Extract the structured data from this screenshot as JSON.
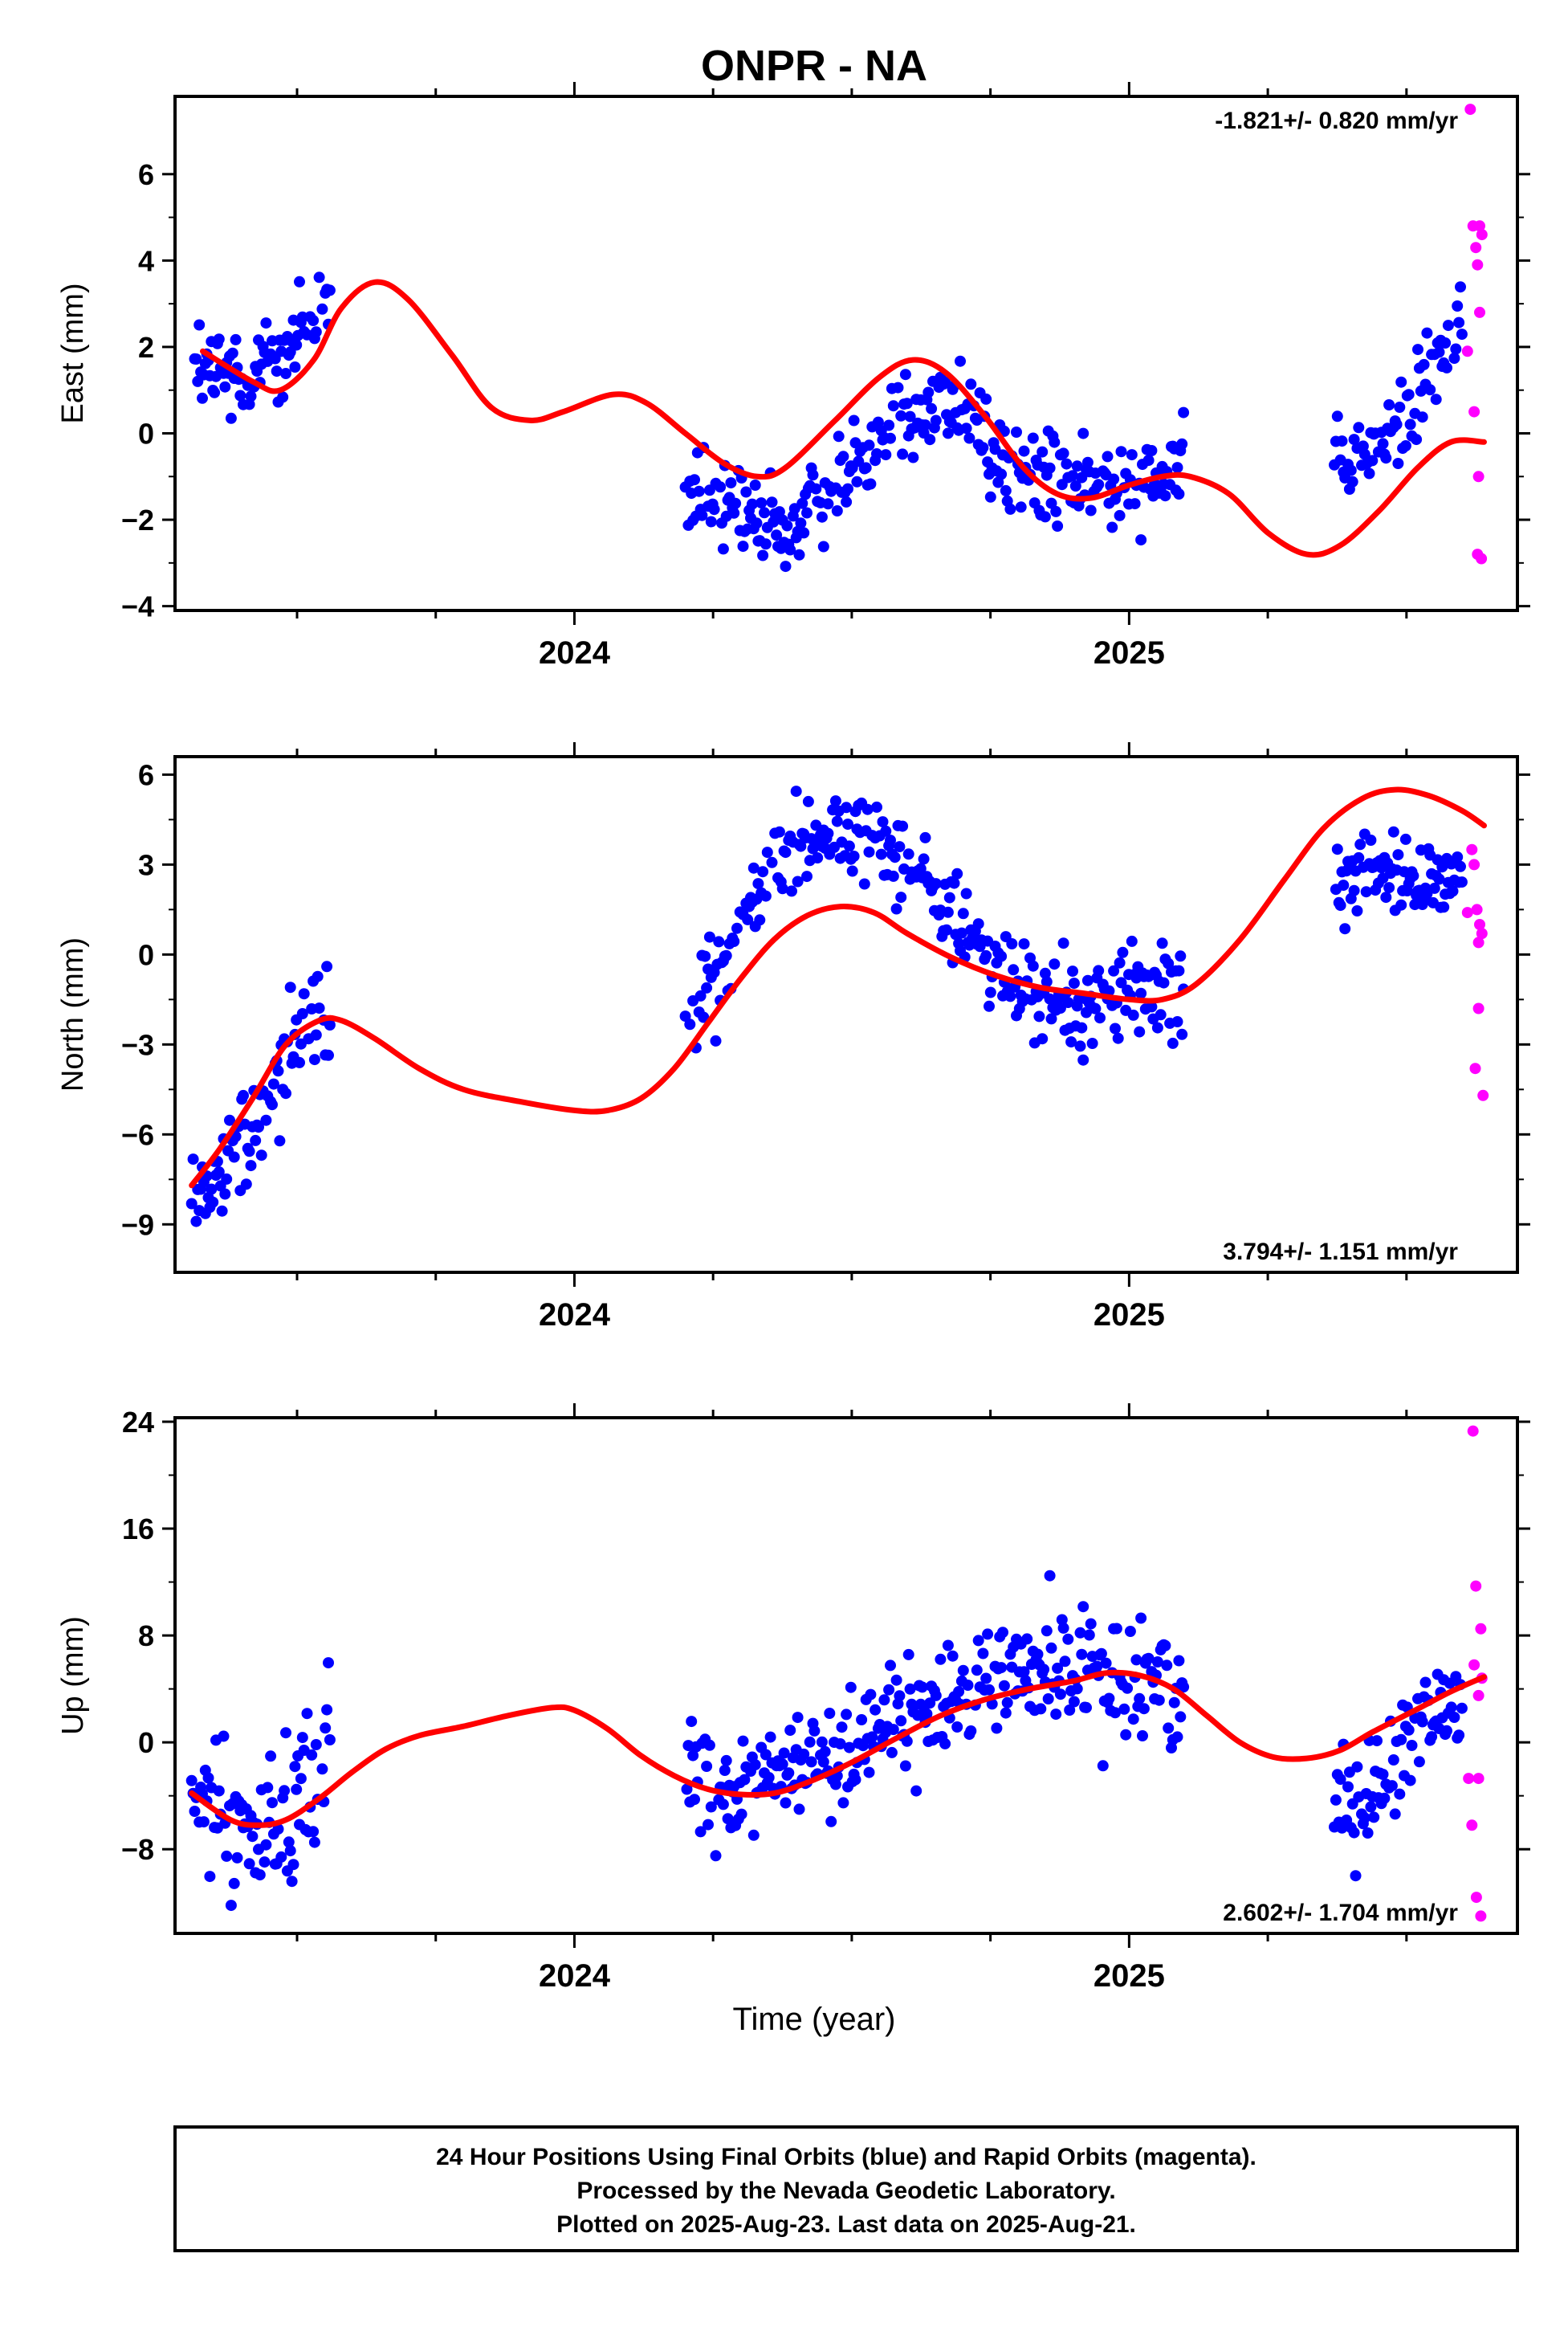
{
  "colors": {
    "final": "#0000ff",
    "rapid": "#ff00ff",
    "model": "#ff0000",
    "frame": "#000000"
  },
  "chart_data": [
    {
      "type": "scatter",
      "title": "ONPR - NA",
      "ylabel": "East (mm)",
      "xlabel": "",
      "xlim": [
        2023.28,
        2025.7
      ],
      "ylim": [
        -4.1,
        7.8
      ],
      "yticks": [
        -4,
        -2,
        0,
        2,
        4,
        6
      ],
      "ytick_labels": [
        "−4",
        "−2",
        "0",
        "2",
        "4",
        "6"
      ],
      "xticks": [
        2024,
        2025
      ],
      "xtick_labels": [
        "2024",
        "2025"
      ],
      "rate_label": "-1.821+/- 0.820 mm/yr",
      "rate_position": "top-right",
      "final_segments": [
        {
          "x_range": [
            2023.31,
            2023.56
          ],
          "knots": [
            [
              2023.31,
              1.6
            ],
            [
              2023.38,
              1.3
            ],
            [
              2023.45,
              1.7
            ],
            [
              2023.52,
              2.5
            ],
            [
              2023.56,
              3.0
            ]
          ],
          "spread": 1.0
        },
        {
          "x_range": [
            2024.2,
            2025.1
          ],
          "knots": [
            [
              2024.2,
              -1.4
            ],
            [
              2024.3,
              -1.9
            ],
            [
              2024.38,
              -2.4
            ],
            [
              2024.47,
              -1.2
            ],
            [
              2024.58,
              0.6
            ],
            [
              2024.7,
              0.6
            ],
            [
              2024.8,
              -1.0
            ],
            [
              2024.95,
              -1.3
            ],
            [
              2025.1,
              -0.5
            ]
          ],
          "spread": 1.0
        },
        {
          "x_range": [
            2025.37,
            2025.6
          ],
          "knots": [
            [
              2025.37,
              -1.0
            ],
            [
              2025.45,
              -0.4
            ],
            [
              2025.52,
              0.8
            ],
            [
              2025.6,
              2.6
            ]
          ],
          "spread": 0.9
        }
      ],
      "rapid_points": [
        [
          2025.615,
          7.5
        ],
        [
          2025.62,
          4.8
        ],
        [
          2025.625,
          4.3
        ],
        [
          2025.628,
          3.9
        ],
        [
          2025.632,
          4.8
        ],
        [
          2025.636,
          4.6
        ],
        [
          2025.632,
          2.8
        ],
        [
          2025.61,
          1.9
        ],
        [
          2025.622,
          0.5
        ],
        [
          2025.63,
          -1.0
        ],
        [
          2025.628,
          -2.8
        ],
        [
          2025.635,
          -2.9
        ]
      ],
      "model_curve": [
        [
          2023.33,
          1.9
        ],
        [
          2023.42,
          1.2
        ],
        [
          2023.47,
          1.0
        ],
        [
          2023.53,
          1.7
        ],
        [
          2023.58,
          2.9
        ],
        [
          2023.64,
          3.5
        ],
        [
          2023.7,
          3.1
        ],
        [
          2023.78,
          1.8
        ],
        [
          2023.85,
          0.6
        ],
        [
          2023.92,
          0.3
        ],
        [
          2023.98,
          0.5
        ],
        [
          2024.07,
          0.9
        ],
        [
          2024.13,
          0.7
        ],
        [
          2024.2,
          0.0
        ],
        [
          2024.27,
          -0.7
        ],
        [
          2024.33,
          -1.0
        ],
        [
          2024.38,
          -0.8
        ],
        [
          2024.47,
          0.3
        ],
        [
          2024.55,
          1.3
        ],
        [
          2024.61,
          1.7
        ],
        [
          2024.67,
          1.4
        ],
        [
          2024.74,
          0.4
        ],
        [
          2024.81,
          -0.8
        ],
        [
          2024.87,
          -1.4
        ],
        [
          2024.93,
          -1.5
        ],
        [
          2025.0,
          -1.2
        ],
        [
          2025.06,
          -1.0
        ],
        [
          2025.11,
          -1.0
        ],
        [
          2025.18,
          -1.4
        ],
        [
          2025.25,
          -2.3
        ],
        [
          2025.32,
          -2.8
        ],
        [
          2025.38,
          -2.6
        ],
        [
          2025.45,
          -1.8
        ],
        [
          2025.52,
          -0.8
        ],
        [
          2025.58,
          -0.2
        ],
        [
          2025.64,
          -0.2
        ]
      ]
    },
    {
      "type": "scatter",
      "title": "",
      "ylabel": "North (mm)",
      "xlabel": "",
      "xlim": [
        2023.28,
        2025.7
      ],
      "ylim": [
        -10.6,
        6.6
      ],
      "yticks": [
        -9,
        -6,
        -3,
        0,
        3,
        6
      ],
      "ytick_labels": [
        "−9",
        "−6",
        "−3",
        "0",
        "3",
        "6"
      ],
      "xticks": [
        2024,
        2025
      ],
      "xtick_labels": [
        "2024",
        "2025"
      ],
      "rate_label": "3.794+/- 1.151 mm/yr",
      "rate_position": "bottom-right",
      "final_segments": [
        {
          "x_range": [
            2023.31,
            2023.56
          ],
          "knots": [
            [
              2023.31,
              -7.8
            ],
            [
              2023.36,
              -7.5
            ],
            [
              2023.42,
              -6.0
            ],
            [
              2023.47,
              -3.5
            ],
            [
              2023.52,
              -2.0
            ],
            [
              2023.56,
              -2.3
            ]
          ],
          "spread": 1.6
        },
        {
          "x_range": [
            2024.2,
            2025.1
          ],
          "knots": [
            [
              2024.2,
              -1.5
            ],
            [
              2024.27,
              -0.5
            ],
            [
              2024.33,
              2.0
            ],
            [
              2024.4,
              3.8
            ],
            [
              2024.48,
              4.2
            ],
            [
              2024.55,
              3.8
            ],
            [
              2024.63,
              2.5
            ],
            [
              2024.7,
              1.0
            ],
            [
              2024.77,
              -0.8
            ],
            [
              2024.85,
              -1.5
            ],
            [
              2024.93,
              -1.7
            ],
            [
              2025.0,
              -1.1
            ],
            [
              2025.1,
              -1.4
            ]
          ],
          "spread": 1.3
        },
        {
          "x_range": [
            2025.37,
            2025.6
          ],
          "knots": [
            [
              2025.37,
              2.5
            ],
            [
              2025.45,
              2.8
            ],
            [
              2025.53,
              2.4
            ],
            [
              2025.6,
              2.6
            ]
          ],
          "spread": 1.1
        }
      ],
      "rapid_points": [
        [
          2025.618,
          3.5
        ],
        [
          2025.622,
          3.0
        ],
        [
          2025.61,
          1.4
        ],
        [
          2025.627,
          1.5
        ],
        [
          2025.632,
          1.0
        ],
        [
          2025.636,
          0.7
        ],
        [
          2025.63,
          0.4
        ],
        [
          2025.63,
          -1.8
        ],
        [
          2025.624,
          -3.8
        ],
        [
          2025.638,
          -4.7
        ]
      ],
      "model_curve": [
        [
          2023.31,
          -7.7
        ],
        [
          2023.36,
          -6.5
        ],
        [
          2023.42,
          -4.8
        ],
        [
          2023.48,
          -3.0
        ],
        [
          2023.54,
          -2.2
        ],
        [
          2023.58,
          -2.2
        ],
        [
          2023.64,
          -2.8
        ],
        [
          2023.72,
          -3.8
        ],
        [
          2023.8,
          -4.5
        ],
        [
          2023.9,
          -4.9
        ],
        [
          2024.0,
          -5.2
        ],
        [
          2024.06,
          -5.2
        ],
        [
          2024.12,
          -4.8
        ],
        [
          2024.18,
          -3.8
        ],
        [
          2024.24,
          -2.3
        ],
        [
          2024.3,
          -0.8
        ],
        [
          2024.36,
          0.5
        ],
        [
          2024.42,
          1.3
        ],
        [
          2024.48,
          1.6
        ],
        [
          2024.54,
          1.4
        ],
        [
          2024.6,
          0.7
        ],
        [
          2024.68,
          -0.1
        ],
        [
          2024.76,
          -0.7
        ],
        [
          2024.84,
          -1.1
        ],
        [
          2024.92,
          -1.3
        ],
        [
          2025.0,
          -1.5
        ],
        [
          2025.06,
          -1.5
        ],
        [
          2025.12,
          -1.0
        ],
        [
          2025.2,
          0.5
        ],
        [
          2025.28,
          2.5
        ],
        [
          2025.35,
          4.2
        ],
        [
          2025.42,
          5.2
        ],
        [
          2025.48,
          5.5
        ],
        [
          2025.54,
          5.3
        ],
        [
          2025.6,
          4.8
        ],
        [
          2025.64,
          4.3
        ]
      ]
    },
    {
      "type": "scatter",
      "title": "",
      "ylabel": "Up (mm)",
      "xlabel": "Time (year)",
      "xlim": [
        2023.28,
        2025.7
      ],
      "ylim": [
        -14.3,
        24.3
      ],
      "yticks": [
        -8,
        0,
        8,
        16,
        24
      ],
      "ytick_labels": [
        "−8",
        "0",
        "8",
        "16",
        "24"
      ],
      "xticks": [
        2024,
        2025
      ],
      "xtick_labels": [
        "2024",
        "2025"
      ],
      "rate_label": "2.602+/- 1.704 mm/yr",
      "rate_position": "bottom-right",
      "final_segments": [
        {
          "x_range": [
            2023.31,
            2023.56
          ],
          "knots": [
            [
              2023.31,
              -4.0
            ],
            [
              2023.4,
              -6.5
            ],
            [
              2023.47,
              -6.0
            ],
            [
              2023.52,
              -2.0
            ],
            [
              2023.56,
              0.5
            ]
          ],
          "spread": 5.0
        },
        {
          "x_range": [
            2024.2,
            2025.1
          ],
          "knots": [
            [
              2024.2,
              -2.0
            ],
            [
              2024.28,
              -4.0
            ],
            [
              2024.36,
              -2.5
            ],
            [
              2024.45,
              -1.0
            ],
            [
              2024.55,
              1.0
            ],
            [
              2024.65,
              2.5
            ],
            [
              2024.75,
              5.0
            ],
            [
              2024.85,
              6.0
            ],
            [
              2024.95,
              4.5
            ],
            [
              2025.05,
              5.0
            ],
            [
              2025.1,
              3.0
            ]
          ],
          "spread": 4.0
        },
        {
          "x_range": [
            2025.37,
            2025.6
          ],
          "knots": [
            [
              2025.37,
              -5.0
            ],
            [
              2025.45,
              -2.5
            ],
            [
              2025.52,
              1.0
            ],
            [
              2025.6,
              4.0
            ]
          ],
          "spread": 4.0
        }
      ],
      "rapid_points": [
        [
          2025.62,
          23.3
        ],
        [
          2025.625,
          11.7
        ],
        [
          2025.634,
          8.5
        ],
        [
          2025.622,
          5.8
        ],
        [
          2025.636,
          4.8
        ],
        [
          2025.63,
          3.5
        ],
        [
          2025.612,
          -2.7
        ],
        [
          2025.63,
          -2.7
        ],
        [
          2025.618,
          -6.2
        ],
        [
          2025.626,
          -11.6
        ],
        [
          2025.634,
          -13.0
        ]
      ],
      "model_curve": [
        [
          2023.31,
          -3.8
        ],
        [
          2023.38,
          -5.8
        ],
        [
          2023.43,
          -6.2
        ],
        [
          2023.48,
          -5.8
        ],
        [
          2023.54,
          -4.2
        ],
        [
          2023.6,
          -2.2
        ],
        [
          2023.66,
          -0.5
        ],
        [
          2023.72,
          0.5
        ],
        [
          2023.8,
          1.2
        ],
        [
          2023.88,
          2.0
        ],
        [
          2023.96,
          2.6
        ],
        [
          2024.0,
          2.4
        ],
        [
          2024.06,
          1.0
        ],
        [
          2024.12,
          -1.0
        ],
        [
          2024.18,
          -2.5
        ],
        [
          2024.24,
          -3.5
        ],
        [
          2024.3,
          -3.9
        ],
        [
          2024.36,
          -3.8
        ],
        [
          2024.42,
          -3.0
        ],
        [
          2024.5,
          -1.5
        ],
        [
          2024.58,
          0.3
        ],
        [
          2024.66,
          2.0
        ],
        [
          2024.74,
          3.2
        ],
        [
          2024.82,
          4.0
        ],
        [
          2024.9,
          4.6
        ],
        [
          2024.96,
          5.2
        ],
        [
          2025.02,
          5.0
        ],
        [
          2025.08,
          4.0
        ],
        [
          2025.14,
          2.0
        ],
        [
          2025.2,
          0.0
        ],
        [
          2025.26,
          -1.1
        ],
        [
          2025.32,
          -1.2
        ],
        [
          2025.38,
          -0.6
        ],
        [
          2025.44,
          0.8
        ],
        [
          2025.52,
          2.5
        ],
        [
          2025.58,
          3.8
        ],
        [
          2025.64,
          4.9
        ]
      ]
    }
  ],
  "footer": {
    "line1": "24 Hour Positions Using Final Orbits (blue) and Rapid Orbits (magenta).",
    "line2": "Processed by the Nevada Geodetic Laboratory.",
    "line3": "Plotted on 2025-Aug-23. Last data on 2025-Aug-21."
  }
}
